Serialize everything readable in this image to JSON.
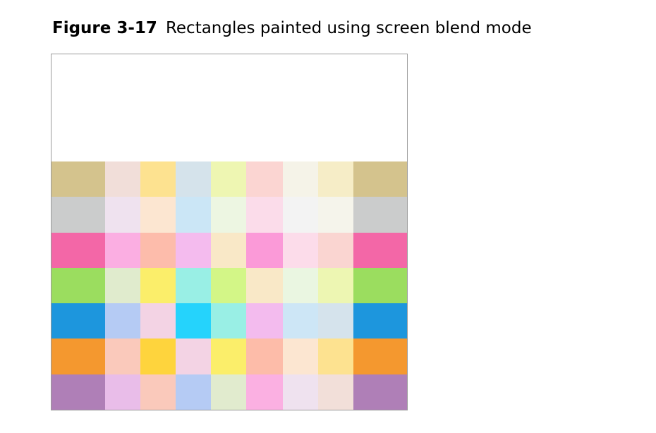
{
  "caption": {
    "label": "Figure 3-17",
    "text": "Rectangles painted using screen blend mode"
  },
  "figure": {
    "columns": [
      0,
      76,
      126,
      176,
      226,
      276,
      328,
      378,
      428,
      504
    ],
    "rows": [
      [
        "#d4c38d",
        "#f1ded9",
        "#fde290",
        "#d5e3eb",
        "#eef6b2",
        "#fbd5d2",
        "#f5f3e8",
        "#f6edc7",
        "#d4c38d"
      ],
      [
        "#cbcccc",
        "#efe2ef",
        "#fce6d1",
        "#cbe6f6",
        "#edf6e2",
        "#fbdcea",
        "#f3f3f3",
        "#f5f4eb",
        "#cbcccc"
      ],
      [
        "#f367a7",
        "#fbaee2",
        "#fdbcab",
        "#f4bbee",
        "#f9e8c7",
        "#fb9ad8",
        "#fcdcea",
        "#fad5d1",
        "#f367a7"
      ],
      [
        "#9bdd5f",
        "#e0ebcd",
        "#fbee6a",
        "#99efe5",
        "#d3f687",
        "#f9e8c7",
        "#eaf6e1",
        "#edf6b2",
        "#9bdd5f"
      ],
      [
        "#1d96dd",
        "#b5cbf4",
        "#f3d3e4",
        "#25d3fc",
        "#99efe5",
        "#f3bbee",
        "#cde6f6",
        "#d5e3ec",
        "#1d96dd"
      ],
      [
        "#f4982f",
        "#fac9bb",
        "#fed43d",
        "#f3d3e4",
        "#fbee6a",
        "#fdbca9",
        "#fce6d1",
        "#fde290",
        "#f4982f"
      ],
      [
        "#af7fb7",
        "#e9bde9",
        "#fac9bb",
        "#b5cbf4",
        "#e1ebce",
        "#fbb0e2",
        "#efe2ef",
        "#f2dfd9",
        "#af7fb7"
      ]
    ]
  }
}
